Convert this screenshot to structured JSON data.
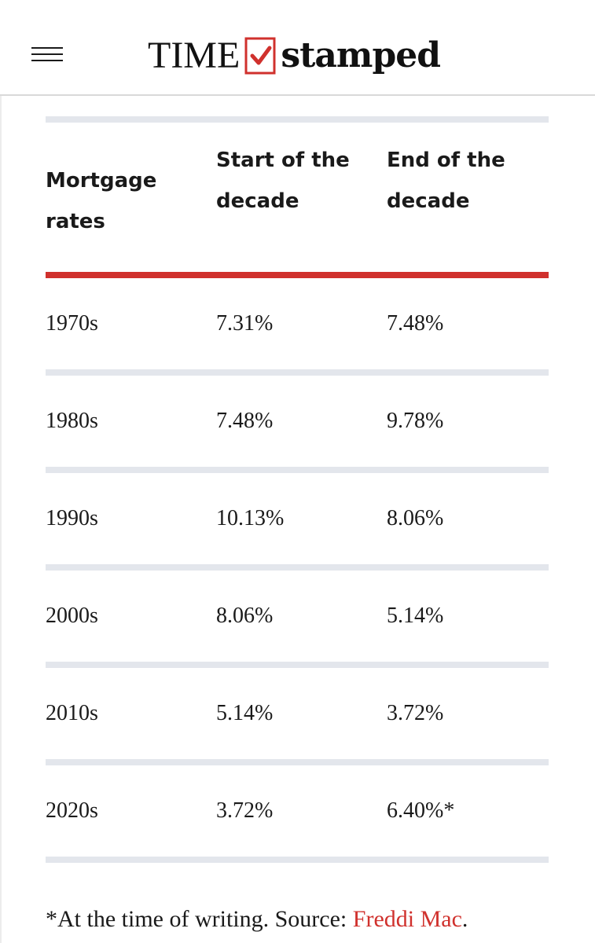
{
  "header": {
    "logo_time": "TIME",
    "logo_stamped": "stamped",
    "menu_icon": "hamburger-menu-icon",
    "check_icon": "checkbox-check-icon",
    "accent_color": "#d0312d"
  },
  "table": {
    "columns": [
      "Mortgage rates",
      "Start of the decade",
      "End of the decade"
    ],
    "rows": [
      [
        "1970s",
        "7.31%",
        "7.48%"
      ],
      [
        "1980s",
        "7.48%",
        "9.78%"
      ],
      [
        "1990s",
        "10.13%",
        "8.06%"
      ],
      [
        "2000s",
        "8.06%",
        "5.14%"
      ],
      [
        "2010s",
        "5.14%",
        "3.72%"
      ],
      [
        "2020s",
        "3.72%",
        "6.40%*"
      ]
    ]
  },
  "footnote": {
    "text": "*At the time of writing. Source: ",
    "link": "Freddi Mac",
    "end": "."
  }
}
